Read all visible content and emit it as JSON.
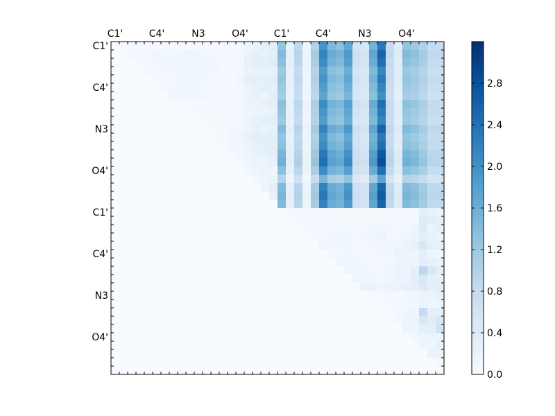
{
  "chart_data": {
    "type": "heatmap",
    "title": "",
    "xlabel": "",
    "ylabel": "",
    "size": 40,
    "x_tick_labels": [
      "C1'",
      "C4'",
      "N3",
      "O4'",
      "C1'",
      "C4'",
      "N3",
      "O4'"
    ],
    "x_tick_indices": [
      0,
      5,
      10,
      15,
      20,
      25,
      30,
      35
    ],
    "y_tick_labels": [
      "C1'",
      "C4'",
      "N3",
      "O4'",
      "C1'",
      "C4'",
      "N3",
      "O4'"
    ],
    "y_tick_indices": [
      0,
      5,
      10,
      15,
      20,
      25,
      30,
      35
    ],
    "colormap": "Blues",
    "colormap_stops": [
      "#f7fbff",
      "#deebf7",
      "#c6dbef",
      "#9ecae1",
      "#6baed6",
      "#4292c6",
      "#2171b5",
      "#08519c",
      "#08306b"
    ],
    "vmin": 0.0,
    "vmax": 3.2,
    "colorbar_ticks": [
      0.0,
      0.4,
      0.8,
      1.2,
      1.6,
      2.0,
      2.4,
      2.8
    ],
    "colorbar_tick_labels": [
      "0.0",
      "0.4",
      "0.8",
      "1.2",
      "1.6",
      "2.0",
      "2.4",
      "2.8"
    ],
    "grid": false,
    "note_values": "Matrix is upper-triangular; rows 0-19 x cols 20-39 hold the strong block (values approx 0.2-3.1), other upper cells approx 0.0-1.3, lower triangle approx 0.",
    "block_column_profile": [
      1.5,
      0.3,
      1.0,
      0.2,
      1.2,
      2.3,
      1.7,
      1.6,
      2.0,
      0.7,
      0.6,
      1.8,
      2.7,
      0.9,
      0.4,
      1.5,
      1.4,
      1.2,
      0.9,
      0.9
    ],
    "block_row_scale": [
      0.85,
      0.95,
      0.9,
      0.8,
      0.85,
      0.8,
      0.75,
      0.9,
      0.85,
      0.8,
      0.95,
      0.85,
      0.9,
      1.0,
      1.05,
      0.9,
      0.65,
      0.95,
      1.0,
      0.95
    ],
    "upper_left_values": [
      [
        0,
        0.05,
        0.08,
        0.06,
        0.05,
        0.06,
        0.05,
        0.04,
        0.04,
        0.03,
        0.05,
        0.05,
        0.04,
        0.08,
        0.08,
        0.07,
        0.15,
        0.2,
        0.3,
        0.35
      ],
      [
        0,
        0,
        0.07,
        0.08,
        0.1,
        0.12,
        0.1,
        0.1,
        0.12,
        0.14,
        0.12,
        0.1,
        0.08,
        0.05,
        0.06,
        0.1,
        0.2,
        0.3,
        0.25,
        0.3
      ],
      [
        0,
        0,
        0,
        0.05,
        0.1,
        0.12,
        0.13,
        0.12,
        0.12,
        0.13,
        0.13,
        0.12,
        0.1,
        0.06,
        0.07,
        0.08,
        0.25,
        0.3,
        0.3,
        0.35
      ],
      [
        0,
        0,
        0,
        0,
        0.06,
        0.08,
        0.1,
        0.1,
        0.12,
        0.12,
        0.12,
        0.1,
        0.1,
        0.06,
        0.07,
        0.1,
        0.2,
        0.25,
        0.22,
        0.25
      ],
      [
        0,
        0,
        0,
        0,
        0,
        0.05,
        0.08,
        0.1,
        0.1,
        0.12,
        0.12,
        0.1,
        0.08,
        0.05,
        0.06,
        0.12,
        0.3,
        0.3,
        0.3,
        0.35
      ],
      [
        0,
        0,
        0,
        0,
        0,
        0,
        0.1,
        0.1,
        0.12,
        0.12,
        0.1,
        0.08,
        0.06,
        0.04,
        0.05,
        0.1,
        0.2,
        0.25,
        0.3,
        0.28
      ],
      [
        0,
        0,
        0,
        0,
        0,
        0,
        0,
        0.12,
        0.14,
        0.12,
        0.12,
        0.1,
        0.08,
        0.06,
        0.08,
        0.08,
        0.2,
        0.25,
        0.2,
        0.3
      ],
      [
        0,
        0,
        0,
        0,
        0,
        0,
        0,
        0,
        0.06,
        0.06,
        0.06,
        0.06,
        0.05,
        0.08,
        0.1,
        0.1,
        0.2,
        0.2,
        0.25,
        0.3
      ],
      [
        0,
        0,
        0,
        0,
        0,
        0,
        0,
        0,
        0,
        0.05,
        0.05,
        0.04,
        0.05,
        0.04,
        0.06,
        0.08,
        0.15,
        0.2,
        0.2,
        0.25
      ],
      [
        0,
        0,
        0,
        0,
        0,
        0,
        0,
        0,
        0,
        0,
        0.05,
        0.04,
        0.04,
        0.06,
        0.06,
        0.08,
        0.2,
        0.25,
        0.3,
        0.3
      ],
      [
        0,
        0,
        0,
        0,
        0,
        0,
        0,
        0,
        0,
        0,
        0,
        0.04,
        0.04,
        0.04,
        0.1,
        0.1,
        0.2,
        0.25,
        0.2,
        0.25
      ],
      [
        0,
        0,
        0,
        0,
        0,
        0,
        0,
        0,
        0,
        0,
        0,
        0,
        0.05,
        0.08,
        0.12,
        0.15,
        0.25,
        0.3,
        0.3,
        0.3
      ],
      [
        0,
        0,
        0,
        0,
        0,
        0,
        0,
        0,
        0,
        0,
        0,
        0,
        0,
        0.06,
        0.1,
        0.12,
        0.2,
        0.25,
        0.3,
        0.3
      ],
      [
        0,
        0,
        0,
        0,
        0,
        0,
        0,
        0,
        0,
        0,
        0,
        0,
        0,
        0,
        0.06,
        0.1,
        0.15,
        0.25,
        0.25,
        0.3
      ],
      [
        0,
        0,
        0,
        0,
        0,
        0,
        0,
        0,
        0,
        0,
        0,
        0,
        0,
        0,
        0,
        0.05,
        0.15,
        0.2,
        0.2,
        0.25
      ],
      [
        0,
        0,
        0,
        0,
        0,
        0,
        0,
        0,
        0,
        0,
        0,
        0,
        0,
        0,
        0,
        0,
        0.1,
        0.15,
        0.2,
        0.15
      ],
      [
        0,
        0,
        0,
        0,
        0,
        0,
        0,
        0,
        0,
        0,
        0,
        0,
        0,
        0,
        0,
        0,
        0,
        0.1,
        0.15,
        0.2
      ],
      [
        0,
        0,
        0,
        0,
        0,
        0,
        0,
        0,
        0,
        0,
        0,
        0,
        0,
        0,
        0,
        0,
        0,
        0,
        0.2,
        0.3
      ],
      [
        0,
        0,
        0,
        0,
        0,
        0,
        0,
        0,
        0,
        0,
        0,
        0,
        0,
        0,
        0,
        0,
        0,
        0,
        0,
        0.25
      ],
      [
        0,
        0,
        0,
        0,
        0,
        0,
        0,
        0,
        0,
        0,
        0,
        0,
        0,
        0,
        0,
        0,
        0,
        0,
        0,
        0
      ]
    ],
    "lower_right_values": [
      [
        0,
        0.05,
        0.08,
        0.06,
        0.04,
        0.06,
        0.05,
        0.05,
        0.04,
        0.04,
        0.06,
        0.05,
        0.04,
        0.05,
        0.06,
        0.08,
        0.1,
        0.3,
        0.25,
        0.2
      ],
      [
        0,
        0,
        0.05,
        0.06,
        0.05,
        0.06,
        0.05,
        0.05,
        0.05,
        0.04,
        0.05,
        0.05,
        0.05,
        0.06,
        0.05,
        0.05,
        0.08,
        0.4,
        0.35,
        0.3
      ],
      [
        0,
        0,
        0,
        0.06,
        0.06,
        0.06,
        0.08,
        0.1,
        0.08,
        0.06,
        0.1,
        0.12,
        0.15,
        0.1,
        0.08,
        0.1,
        0.15,
        0.4,
        0.2,
        0.3
      ],
      [
        0,
        0,
        0,
        0,
        0.08,
        0.1,
        0.12,
        0.15,
        0.12,
        0.1,
        0.12,
        0.15,
        0.18,
        0.1,
        0.1,
        0.12,
        0.2,
        0.3,
        0.25,
        0.2
      ],
      [
        0,
        0,
        0,
        0,
        0,
        0.12,
        0.1,
        0.1,
        0.12,
        0.08,
        0.08,
        0.1,
        0.15,
        0.1,
        0.12,
        0.2,
        0.25,
        0.5,
        0.3,
        0.3
      ],
      [
        0,
        0,
        0,
        0,
        0,
        0,
        0.1,
        0.08,
        0.12,
        0.1,
        0.08,
        0.1,
        0.1,
        0.1,
        0.2,
        0.15,
        0.15,
        0.3,
        0.15,
        0.1
      ],
      [
        0,
        0,
        0,
        0,
        0,
        0,
        0,
        0.12,
        0.15,
        0.12,
        0.1,
        0.1,
        0.08,
        0.1,
        0.15,
        0.2,
        0.2,
        0.3,
        0.25,
        0.2
      ],
      [
        0,
        0,
        0,
        0,
        0,
        0,
        0,
        0,
        0.12,
        0.15,
        0.1,
        0.1,
        0.1,
        0.12,
        0.2,
        0.15,
        0.3,
        0.9,
        0.5,
        0.3
      ],
      [
        0,
        0,
        0,
        0,
        0,
        0,
        0,
        0,
        0,
        0.15,
        0.12,
        0.12,
        0.1,
        0.15,
        0.2,
        0.2,
        0.35,
        0.5,
        0.3,
        0.25
      ],
      [
        0,
        0,
        0,
        0,
        0,
        0,
        0,
        0,
        0,
        0,
        0.2,
        0.2,
        0.15,
        0.2,
        0.2,
        0.25,
        0.3,
        0.4,
        0.3,
        0.3
      ],
      [
        0,
        0,
        0,
        0,
        0,
        0,
        0,
        0,
        0,
        0,
        0,
        0.05,
        0.05,
        0.04,
        0.06,
        0.1,
        0.12,
        0.2,
        0.2,
        0.25
      ],
      [
        0,
        0,
        0,
        0,
        0,
        0,
        0,
        0,
        0,
        0,
        0,
        0,
        0.05,
        0.05,
        0.06,
        0.08,
        0.1,
        0.2,
        0.15,
        0.2
      ],
      [
        0,
        0,
        0,
        0,
        0,
        0,
        0,
        0,
        0,
        0,
        0,
        0,
        0,
        0.05,
        0.08,
        0.12,
        0.15,
        0.8,
        0.3,
        0.3
      ],
      [
        0,
        0,
        0,
        0,
        0,
        0,
        0,
        0,
        0,
        0,
        0,
        0,
        0,
        0,
        0.1,
        0.15,
        0.2,
        0.5,
        0.35,
        0.5
      ],
      [
        0,
        0,
        0,
        0,
        0,
        0,
        0,
        0,
        0,
        0,
        0,
        0,
        0,
        0,
        0,
        0.15,
        0.15,
        0.3,
        0.3,
        0.6
      ],
      [
        0,
        0,
        0,
        0,
        0,
        0,
        0,
        0,
        0,
        0,
        0,
        0,
        0,
        0,
        0,
        0,
        0.1,
        0.15,
        0.2,
        0.2
      ],
      [
        0,
        0,
        0,
        0,
        0,
        0,
        0,
        0,
        0,
        0,
        0,
        0,
        0,
        0,
        0,
        0,
        0,
        0.15,
        0.15,
        0.25
      ],
      [
        0,
        0,
        0,
        0,
        0,
        0,
        0,
        0,
        0,
        0,
        0,
        0,
        0,
        0,
        0,
        0,
        0,
        0,
        0.2,
        0.2
      ],
      [
        0,
        0,
        0,
        0,
        0,
        0,
        0,
        0,
        0,
        0,
        0,
        0,
        0,
        0,
        0,
        0,
        0,
        0,
        0,
        0.08
      ],
      [
        0,
        0,
        0,
        0,
        0,
        0,
        0,
        0,
        0,
        0,
        0,
        0,
        0,
        0,
        0,
        0,
        0,
        0,
        0,
        0
      ]
    ]
  }
}
